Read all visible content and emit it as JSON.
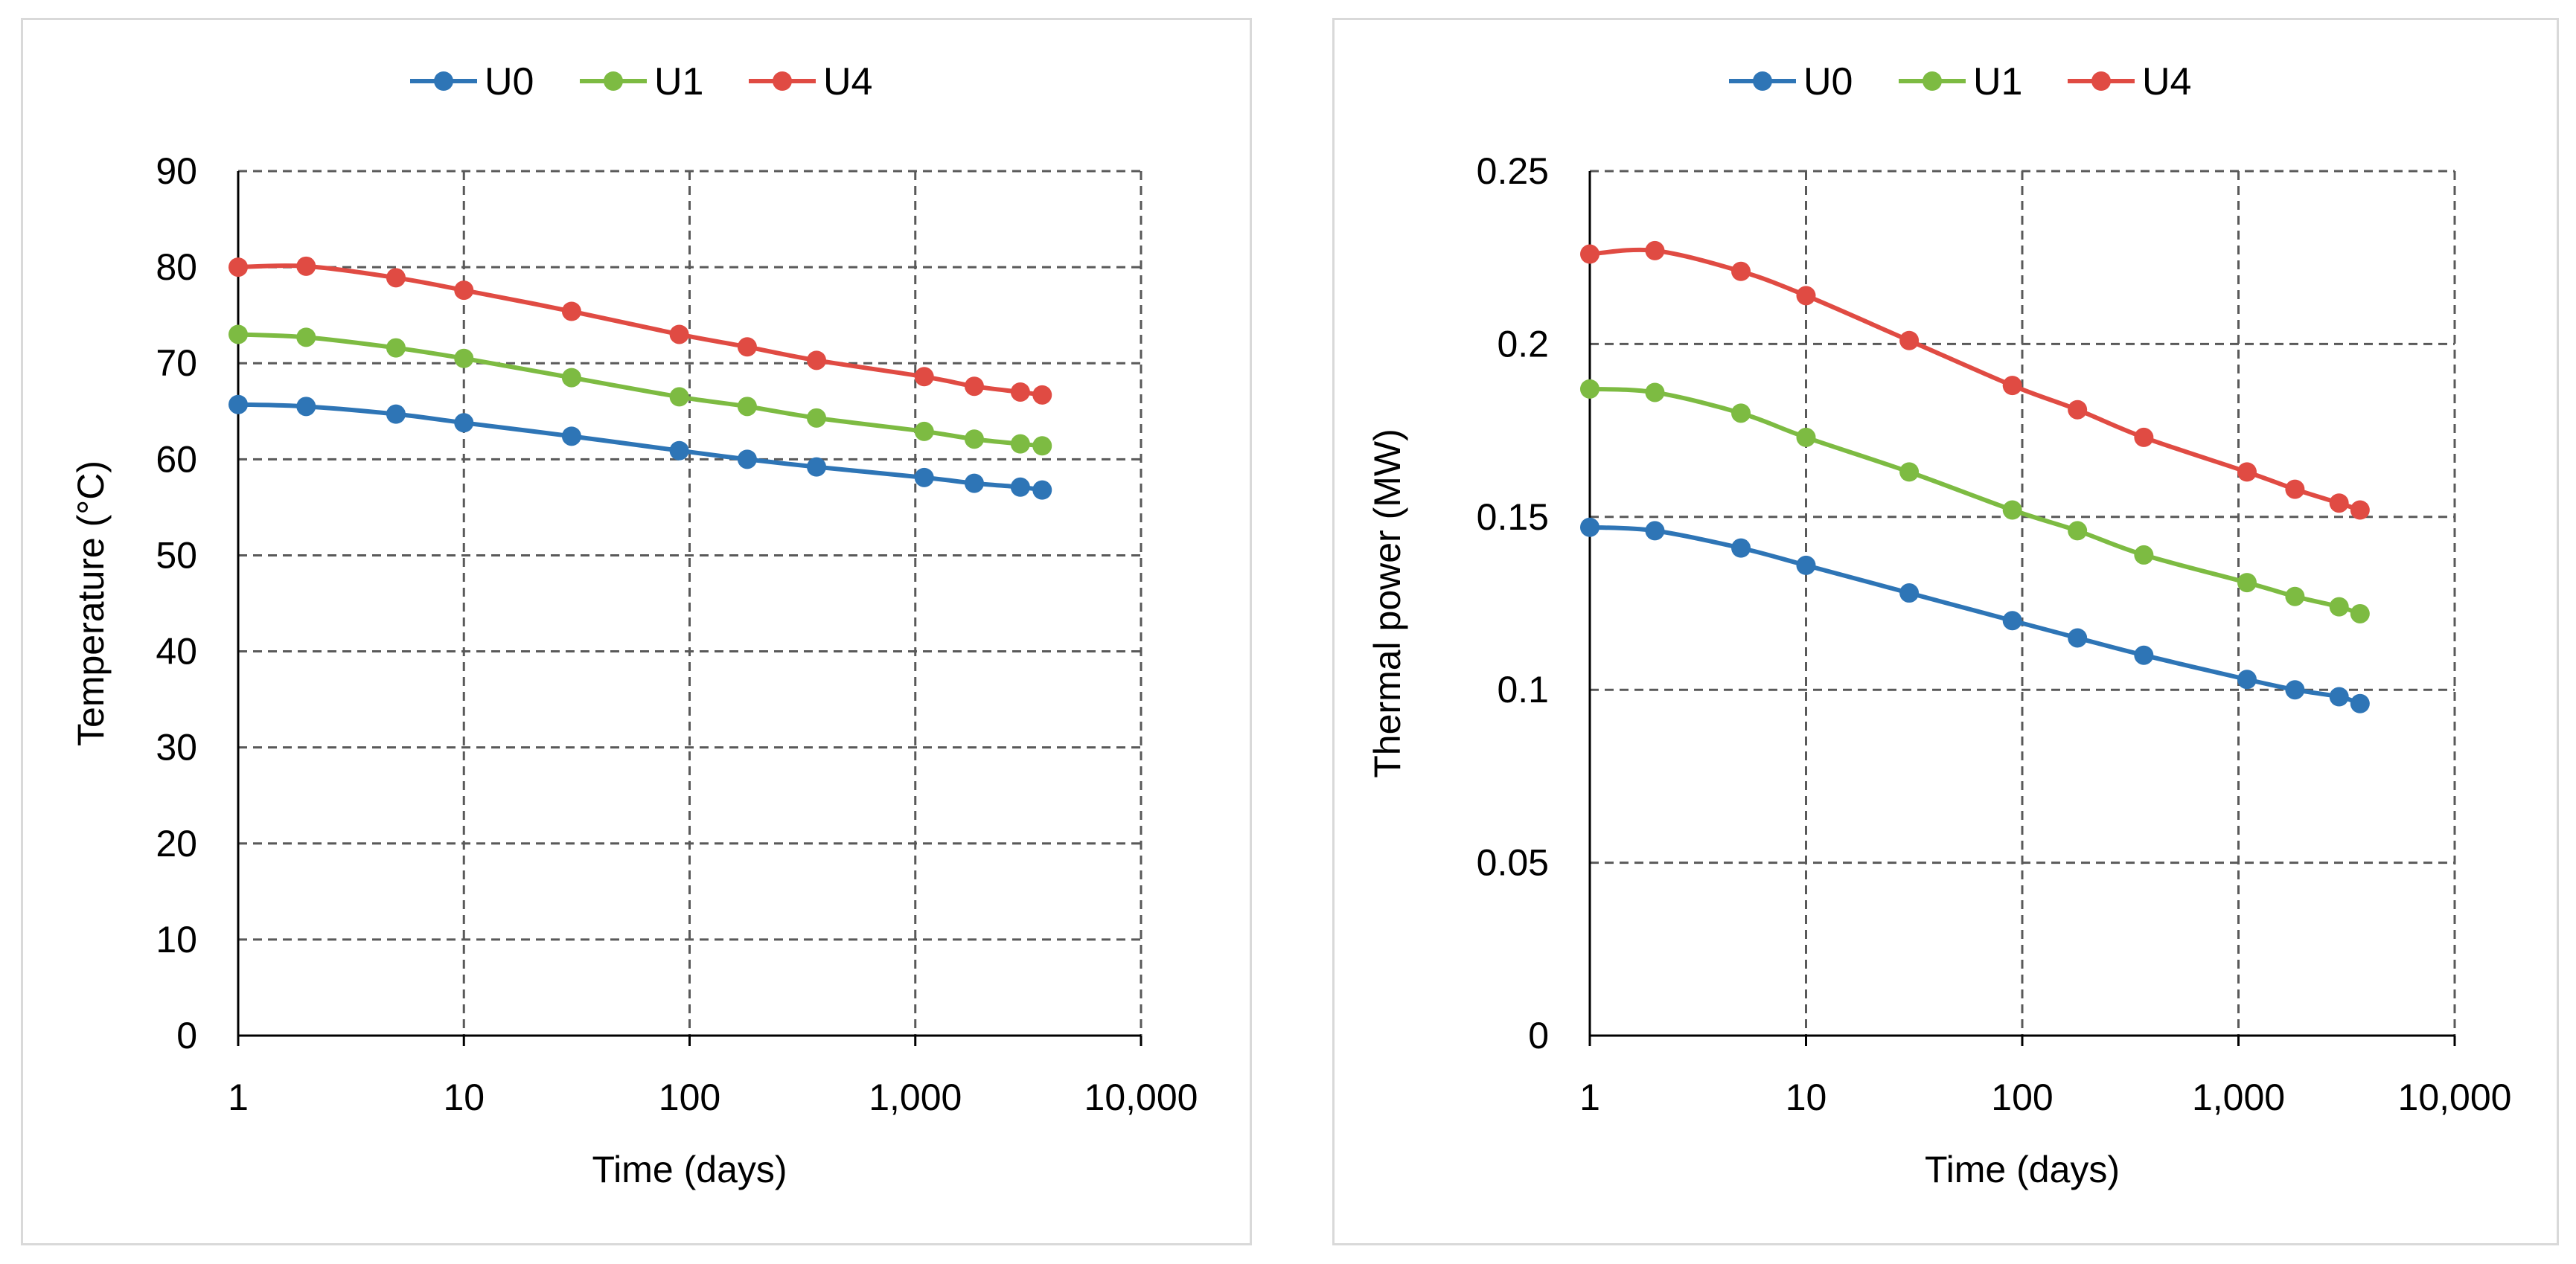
{
  "colors": {
    "U0": "#2e75b6",
    "U1": "#7dbb42",
    "U4": "#e04b43",
    "grid": "#595959",
    "axis": "#000000"
  },
  "chart_data": [
    {
      "type": "line",
      "xscale": "log",
      "xlim": [
        1,
        10000
      ],
      "ylim": [
        0,
        90
      ],
      "xticks": [
        1,
        10,
        100,
        1000,
        10000
      ],
      "xtick_labels": [
        "1",
        "10",
        "100",
        "1,000",
        "10,000"
      ],
      "yticks": [
        0,
        10,
        20,
        30,
        40,
        50,
        60,
        70,
        80,
        90
      ],
      "ytick_labels": [
        "0",
        "10",
        "20",
        "30",
        "40",
        "50",
        "60",
        "70",
        "80",
        "90"
      ],
      "xlabel": "Time (days)",
      "ylabel": "Temperature (°C)",
      "grid": true,
      "legend": "top-center",
      "x": [
        1,
        2,
        5,
        10,
        30,
        90,
        180,
        365,
        1095,
        1825,
        2920,
        3650
      ],
      "series": [
        {
          "name": "U0",
          "color": "#2e75b6",
          "values": [
            65.7,
            65.5,
            64.7,
            63.8,
            62.4,
            60.9,
            60.0,
            59.2,
            58.1,
            57.5,
            57.1,
            56.8
          ]
        },
        {
          "name": "U1",
          "color": "#7dbb42",
          "values": [
            73.0,
            72.7,
            71.6,
            70.5,
            68.5,
            66.5,
            65.5,
            64.3,
            62.9,
            62.1,
            61.6,
            61.4
          ]
        },
        {
          "name": "U4",
          "color": "#e04b43",
          "values": [
            80.0,
            80.1,
            78.9,
            77.6,
            75.4,
            73.0,
            71.7,
            70.3,
            68.6,
            67.6,
            67.0,
            66.7
          ]
        }
      ]
    },
    {
      "type": "line",
      "xscale": "log",
      "xlim": [
        1,
        10000
      ],
      "ylim": [
        0,
        0.25
      ],
      "xticks": [
        1,
        10,
        100,
        1000,
        10000
      ],
      "xtick_labels": [
        "1",
        "10",
        "100",
        "1,000",
        "10,000"
      ],
      "yticks": [
        0,
        0.05,
        0.1,
        0.15,
        0.2,
        0.25
      ],
      "ytick_labels": [
        "0",
        "0.05",
        "0.1",
        "0.15",
        "0.2",
        "0.25"
      ],
      "xlabel": "Time (days)",
      "ylabel": "Thermal power (MW)",
      "grid": true,
      "legend": "top-center",
      "x": [
        1,
        2,
        5,
        10,
        30,
        90,
        180,
        365,
        1095,
        1825,
        2920,
        3650
      ],
      "series": [
        {
          "name": "U0",
          "color": "#2e75b6",
          "values": [
            0.147,
            0.146,
            0.141,
            0.136,
            0.128,
            0.12,
            0.115,
            0.11,
            0.103,
            0.1,
            0.098,
            0.096
          ]
        },
        {
          "name": "U1",
          "color": "#7dbb42",
          "values": [
            0.187,
            0.186,
            0.18,
            0.173,
            0.163,
            0.152,
            0.146,
            0.139,
            0.131,
            0.127,
            0.124,
            0.122
          ]
        },
        {
          "name": "U4",
          "color": "#e04b43",
          "values": [
            0.226,
            0.227,
            0.221,
            0.214,
            0.201,
            0.188,
            0.181,
            0.173,
            0.163,
            0.158,
            0.154,
            0.152
          ]
        }
      ]
    }
  ]
}
